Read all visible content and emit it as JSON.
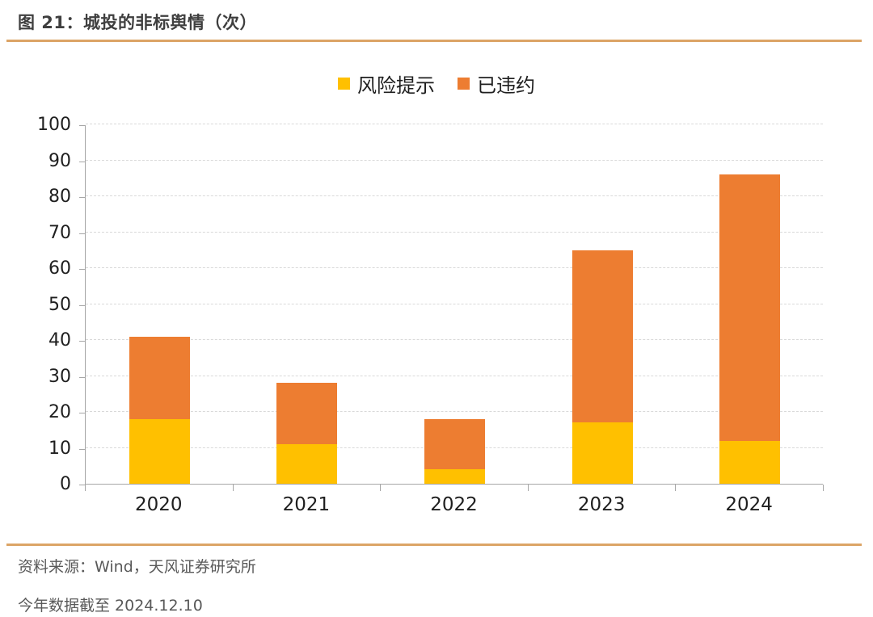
{
  "title": "图 21：城投的非标舆情（次）",
  "legend": [
    {
      "label": "风险提示",
      "color": "#FFC000"
    },
    {
      "label": "已违约",
      "color": "#ED7D31"
    }
  ],
  "chart_data": {
    "type": "bar",
    "stacked": true,
    "title": "城投的非标舆情（次）",
    "categories": [
      "2020",
      "2021",
      "2022",
      "2023",
      "2024"
    ],
    "series": [
      {
        "name": "风险提示",
        "color": "#FFC000",
        "values": [
          18,
          11,
          4,
          17,
          12
        ]
      },
      {
        "name": "已违约",
        "color": "#ED7D31",
        "values": [
          23,
          17,
          14,
          48,
          74
        ]
      }
    ],
    "totals": [
      41,
      28,
      18,
      65,
      86
    ],
    "xlabel": "",
    "ylabel": "",
    "ylim": [
      0,
      100
    ],
    "ytick_interval": 10,
    "grid": "horizontal-dashed",
    "legend_position": "top-center"
  },
  "footer": {
    "source": "资料来源：Wind，天风证券研究所",
    "note": "今年数据截至 2024.12.10"
  },
  "colors": {
    "accent_rule": "#DCA466",
    "axis": "#A6A6A6",
    "gridline": "#D9D9D9",
    "title_text": "#3F3F3F",
    "footer_text": "#595959",
    "axis_label_text": "#1F1F1F"
  }
}
